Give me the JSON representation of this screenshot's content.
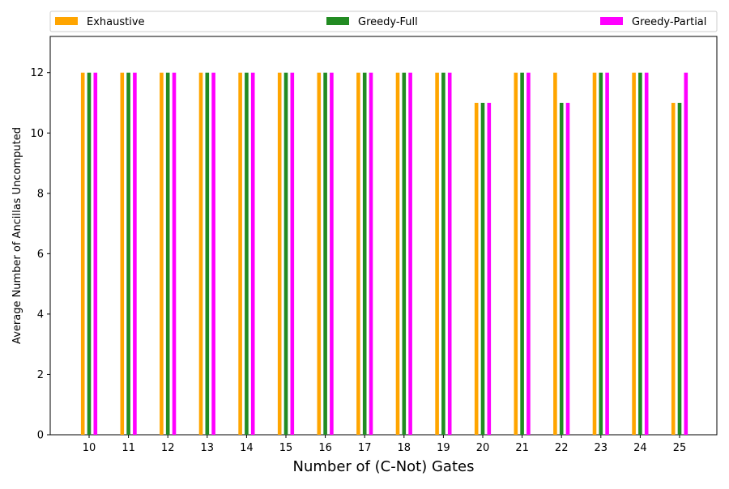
{
  "chart_data": {
    "type": "bar",
    "categories": [
      "10",
      "11",
      "12",
      "13",
      "14",
      "15",
      "16",
      "17",
      "18",
      "19",
      "20",
      "21",
      "22",
      "23",
      "24",
      "25"
    ],
    "series": [
      {
        "name": "Exhaustive",
        "color": "#ffa500",
        "values": [
          12,
          12,
          12,
          12,
          12,
          12,
          12,
          12,
          12,
          12,
          11,
          12,
          12,
          12,
          12,
          11
        ]
      },
      {
        "name": "Greedy-Full",
        "color": "#228b22",
        "values": [
          12,
          12,
          12,
          12,
          12,
          12,
          12,
          12,
          12,
          12,
          11,
          12,
          11,
          12,
          12,
          11
        ]
      },
      {
        "name": "Greedy-Partial",
        "color": "#ff00ff",
        "values": [
          12,
          12,
          12,
          12,
          12,
          12,
          12,
          12,
          12,
          12,
          11,
          12,
          11,
          12,
          12,
          12
        ]
      }
    ],
    "xlabel": "Number of (C-Not) Gates",
    "ylabel": "Average Number of Ancillas Uncomputed",
    "ylim": [
      0,
      13.2
    ],
    "yticks": [
      0,
      2,
      4,
      6,
      8,
      10,
      12
    ],
    "legend_position": "top, outside, spanning full width",
    "grid": false
  }
}
